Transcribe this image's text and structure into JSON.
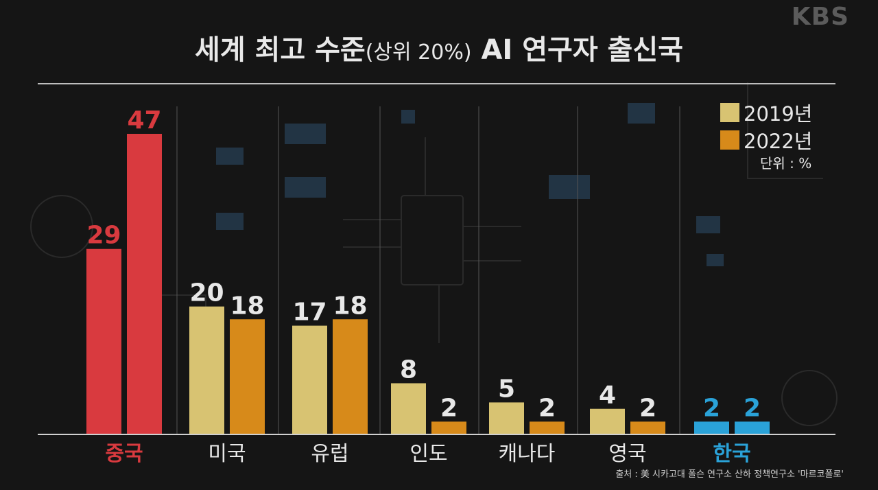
{
  "logo": "KBS",
  "title": {
    "main": "세계 최고 수준",
    "sub": "(상위 20%)",
    "end": " AI 연구자 출신국"
  },
  "legend": [
    {
      "label": "2019년",
      "color": "#d8c372"
    },
    {
      "label": "2022년",
      "color": "#d78a1a"
    }
  ],
  "unit": "단위 : %",
  "source": "출처 : 美 시카고대 폴슨 연구소 산하 정책연구소 '마르코폴로'",
  "colors": {
    "china": "#d93a3f",
    "korea": "#2aa2d8",
    "y2019": "#d8c372",
    "y2022": "#d78a1a",
    "label_default": "#e8e8e8"
  },
  "chart_data": {
    "type": "bar",
    "categories": [
      "중국",
      "미국",
      "유럽",
      "인도",
      "캐나다",
      "영국",
      "한국"
    ],
    "series": [
      {
        "name": "2019년",
        "values": [
          29,
          20,
          17,
          8,
          5,
          4,
          2
        ]
      },
      {
        "name": "2022년",
        "values": [
          47,
          18,
          18,
          2,
          2,
          2,
          2
        ]
      }
    ],
    "title": "세계 최고 수준(상위 20%) AI 연구자 출신국",
    "unit": "%",
    "highlight": {
      "중국": "china",
      "한국": "korea"
    },
    "ylim": [
      0,
      47
    ],
    "grid": "vertical separators"
  }
}
